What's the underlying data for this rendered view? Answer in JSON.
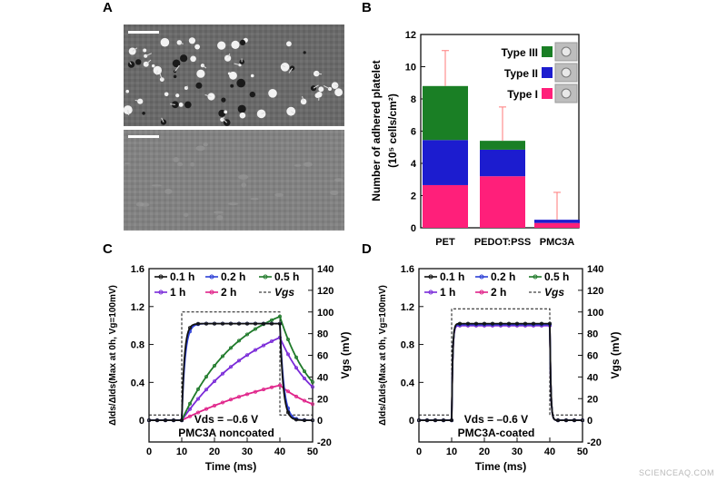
{
  "panels": {
    "a": {
      "label": "A"
    },
    "b": {
      "label": "B"
    },
    "c": {
      "label": "C"
    },
    "d": {
      "label": "D"
    }
  },
  "watermark": "SCIENCEAQ.COM",
  "colors": {
    "type1": "#ff1f7a",
    "type2": "#1c1ccf",
    "type3": "#1a7f25",
    "series_01h": "#111111",
    "series_02h": "#2c3fd6",
    "series_05h": "#1f7a2a",
    "series_1h": "#7a2ad8",
    "series_2h": "#e0248a",
    "vgs": "#111111"
  },
  "chart_data": [
    {
      "panel": "B",
      "type": "bar",
      "stacked": true,
      "categories": [
        "PET",
        "PEDOT:PSS",
        "PMC3A"
      ],
      "series": [
        {
          "name": "Type I",
          "values": [
            2.65,
            3.2,
            0.3
          ],
          "color": "#ff1f7a"
        },
        {
          "name": "Type II",
          "values": [
            2.8,
            1.65,
            0.2
          ],
          "color": "#1c1ccf"
        },
        {
          "name": "Type III",
          "values": [
            3.35,
            0.55,
            0.0
          ],
          "color": "#1a7f25"
        }
      ],
      "error_top": [
        11.0,
        7.5,
        2.2
      ],
      "ylabel_line1": "Number of adhered platelet",
      "ylabel_line2": "(10⁵ cells/cm²)",
      "ylim": [
        0,
        12
      ],
      "yticks": [
        "0",
        "2",
        "4",
        "6",
        "8",
        "10",
        "12"
      ],
      "legend_position": "top-right"
    },
    {
      "panel": "C",
      "type": "line",
      "x_label": "Time (ms)",
      "xticks": [
        "0",
        "10",
        "20",
        "30",
        "40",
        "50"
      ],
      "xlim": [
        0,
        50
      ],
      "ylabel_left": "ΔIds/ΔIds(Max at 0h, Vg=100mV)",
      "ylim_left": [
        0,
        1.6
      ],
      "yticks_left": [
        "0",
        "0.4",
        "0.8",
        "1.2",
        "1.6"
      ],
      "ylabel_right": "Vgs (mV)",
      "ylim_right": [
        -20,
        140
      ],
      "yticks_right": [
        "-20",
        "0",
        "20",
        "40",
        "60",
        "80",
        "100",
        "120",
        "140"
      ],
      "annotation_vds": "Vds = –0.6 V",
      "annotation_label": "PMC3A noncoated",
      "series": [
        {
          "name": "0.1 h",
          "tau_rise": 0.8,
          "amp": 1.02,
          "tau_fall": 1.0
        },
        {
          "name": "0.2 h",
          "tau_rise": 1.0,
          "amp": 1.02,
          "tau_fall": 1.2
        },
        {
          "name": "0.5 h",
          "tau_rise": 18.0,
          "amp": 1.35,
          "tau_fall": 10.0
        },
        {
          "name": "1 h",
          "tau_rise": 25.0,
          "amp": 1.25,
          "tau_fall": 11.0
        },
        {
          "name": "2 h",
          "tau_rise": 40.0,
          "amp": 0.7,
          "tau_fall": 13.0
        }
      ],
      "vgs_pulse": {
        "name": "Vgs",
        "t_on": 10,
        "t_off": 40,
        "high_mV": 100,
        "low_mV": 5
      }
    },
    {
      "panel": "D",
      "type": "line",
      "x_label": "Time (ms)",
      "xticks": [
        "0",
        "10",
        "20",
        "30",
        "40",
        "50"
      ],
      "xlim": [
        0,
        50
      ],
      "ylabel_left": "ΔIds/ΔIds(Max at 0h, Vg=100mV)",
      "ylim_left": [
        0,
        1.6
      ],
      "yticks_left": [
        "0",
        "0.4",
        "0.8",
        "1.2",
        "1.6"
      ],
      "ylabel_right": "Vgs (mV)",
      "ylim_right": [
        -20,
        140
      ],
      "yticks_right": [
        "-20",
        "0",
        "20",
        "40",
        "60",
        "80",
        "100",
        "120",
        "140"
      ],
      "annotation_vds": "Vds = –0.6 V",
      "annotation_label": "PMC3A-coated",
      "series": [
        {
          "name": "0.1 h",
          "tau_rise": 0.3,
          "amp": 1.02,
          "tau_fall": 0.3
        },
        {
          "name": "0.2 h",
          "tau_rise": 0.3,
          "amp": 1.01,
          "tau_fall": 0.3
        },
        {
          "name": "0.5 h",
          "tau_rise": 0.3,
          "amp": 1.015,
          "tau_fall": 0.3
        },
        {
          "name": "1 h",
          "tau_rise": 0.3,
          "amp": 1.0,
          "tau_fall": 0.3
        },
        {
          "name": "2 h",
          "tau_rise": 0.3,
          "amp": 1.0,
          "tau_fall": 0.3
        }
      ],
      "vgs_pulse": {
        "name": "Vgs",
        "t_on": 10,
        "t_off": 40,
        "high_mV": 103,
        "low_mV": 5
      }
    }
  ]
}
